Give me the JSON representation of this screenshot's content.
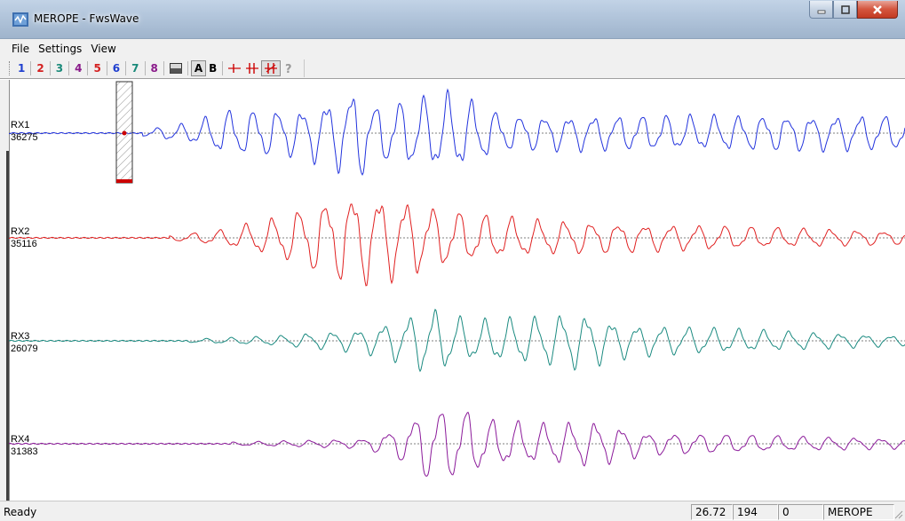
{
  "window": {
    "title": "MEROPE - FwsWave",
    "icon": "app-icon",
    "controls": [
      "minimize-icon",
      "maximize-icon",
      "close-icon"
    ]
  },
  "menu": {
    "items": [
      {
        "label": "File"
      },
      {
        "label": "Settings"
      },
      {
        "label": "View"
      }
    ]
  },
  "toolbar": {
    "channels": [
      {
        "label": "1",
        "color": "#1f3fcf"
      },
      {
        "label": "2",
        "color": "#d42020"
      },
      {
        "label": "3",
        "color": "#1a8a7a"
      },
      {
        "label": "4",
        "color": "#8a1a8a"
      },
      {
        "label": "5",
        "color": "#d42020"
      },
      {
        "label": "6",
        "color": "#1f3fcf"
      },
      {
        "label": "7",
        "color": "#1a8a7a"
      },
      {
        "label": "8",
        "color": "#8a1a8a"
      }
    ],
    "mode_a_label": "A",
    "mode_b_label": "B",
    "icons": [
      "panel-icon",
      "marker-single-icon",
      "marker-double-icon",
      "marker-range-icon",
      "help-icon"
    ]
  },
  "traces": [
    {
      "label": "RX1",
      "count": "36275",
      "color": "#2233dd"
    },
    {
      "label": "RX2",
      "count": "35116",
      "color": "#e02020"
    },
    {
      "label": "RX3",
      "count": "26079",
      "color": "#1a8a80"
    },
    {
      "label": "RX4",
      "count": "31383",
      "color": "#8b1a9a"
    }
  ],
  "cursor_marker": {
    "color": "#cc0000"
  },
  "status": {
    "text": "Ready",
    "panels": [
      "26.72",
      "194",
      "0",
      "MEROPE"
    ]
  }
}
